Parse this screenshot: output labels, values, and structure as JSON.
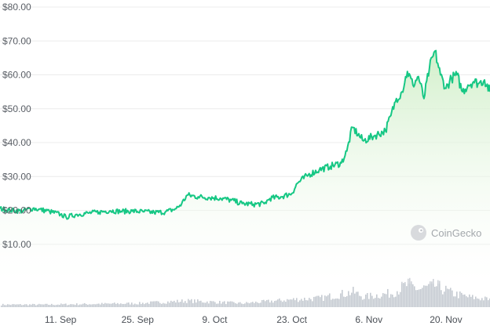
{
  "chart_data": {
    "type": "area",
    "title": "",
    "xlabel": "",
    "ylabel": "",
    "y_tick_labels": [
      "$10.00",
      "$20.00",
      "$30.00",
      "$40.00",
      "$50.00",
      "$60.00",
      "$70.00",
      "$80.00"
    ],
    "y_ticks": [
      10,
      20,
      30,
      40,
      50,
      60,
      70,
      80
    ],
    "ylim": [
      0,
      80
    ],
    "x_tick_labels": [
      "11. Sep",
      "25. Sep",
      "9. Oct",
      "23. Oct",
      "6. Nov",
      "20. Nov"
    ],
    "x_ticks": [
      "2023-09-11",
      "2023-09-25",
      "2023-10-09",
      "2023-10-23",
      "2023-11-06",
      "2023-11-20"
    ],
    "x_range": [
      "2023-08-31",
      "2023-11-28"
    ],
    "grid": "horizontal",
    "series": [
      {
        "values": [
          [
            "2023-08-31",
            20.5
          ],
          [
            "2023-09-02",
            20.0
          ],
          [
            "2023-09-04",
            19.8
          ],
          [
            "2023-09-06",
            20.6
          ],
          [
            "2023-09-07",
            20.3
          ],
          [
            "2023-09-09",
            19.7
          ],
          [
            "2023-09-11",
            18.8
          ],
          [
            "2023-09-12",
            18.0
          ],
          [
            "2023-09-14",
            18.8
          ],
          [
            "2023-09-16",
            19.2
          ],
          [
            "2023-09-18",
            19.5
          ],
          [
            "2023-09-20",
            19.9
          ],
          [
            "2023-09-22",
            19.7
          ],
          [
            "2023-09-24",
            19.8
          ],
          [
            "2023-09-26",
            19.6
          ],
          [
            "2023-09-28",
            19.4
          ],
          [
            "2023-09-30",
            19.5
          ],
          [
            "2023-10-02",
            20.5
          ],
          [
            "2023-10-03",
            22.0
          ],
          [
            "2023-10-04",
            24.5
          ],
          [
            "2023-10-06",
            24.0
          ],
          [
            "2023-10-08",
            23.8
          ],
          [
            "2023-10-10",
            23.6
          ],
          [
            "2023-10-12",
            23.0
          ],
          [
            "2023-10-14",
            22.0
          ],
          [
            "2023-10-16",
            21.8
          ],
          [
            "2023-10-18",
            22.0
          ],
          [
            "2023-10-19",
            23.5
          ],
          [
            "2023-10-21",
            24.0
          ],
          [
            "2023-10-23",
            25.0
          ],
          [
            "2023-10-24",
            28.0
          ],
          [
            "2023-10-26",
            30.5
          ],
          [
            "2023-10-28",
            32.0
          ],
          [
            "2023-10-30",
            33.0
          ],
          [
            "2023-11-01",
            34.0
          ],
          [
            "2023-11-02",
            37.5
          ],
          [
            "2023-11-03",
            44.5
          ],
          [
            "2023-11-05",
            40.5
          ],
          [
            "2023-11-07",
            42.0
          ],
          [
            "2023-11-09",
            43.5
          ],
          [
            "2023-11-10",
            48.0
          ],
          [
            "2023-11-11",
            53.0
          ],
          [
            "2023-11-12",
            55.0
          ],
          [
            "2023-11-13",
            61.0
          ],
          [
            "2023-11-14",
            57.0
          ],
          [
            "2023-11-15",
            59.5
          ],
          [
            "2023-11-16",
            53.0
          ],
          [
            "2023-11-17",
            62.0
          ],
          [
            "2023-11-18",
            67.0
          ],
          [
            "2023-11-19",
            60.0
          ],
          [
            "2023-11-20",
            56.0
          ],
          [
            "2023-11-21",
            59.0
          ],
          [
            "2023-11-22",
            60.0
          ],
          [
            "2023-11-23",
            55.0
          ],
          [
            "2023-11-24",
            57.0
          ],
          [
            "2023-11-25",
            58.0
          ],
          [
            "2023-11-26",
            57.5
          ],
          [
            "2023-11-27",
            58.5
          ],
          [
            "2023-11-28",
            55.0
          ]
        ]
      }
    ],
    "volume": [
      [
        "2023-08-31",
        0.1
      ],
      [
        "2023-09-08",
        0.1
      ],
      [
        "2023-09-25",
        0.15
      ],
      [
        "2023-10-04",
        0.25
      ],
      [
        "2023-10-14",
        0.15
      ],
      [
        "2023-10-23",
        0.3
      ],
      [
        "2023-10-28",
        0.35
      ],
      [
        "2023-11-03",
        0.6
      ],
      [
        "2023-11-05",
        0.4
      ],
      [
        "2023-11-10",
        0.55
      ],
      [
        "2023-11-13",
        0.9
      ],
      [
        "2023-11-15",
        0.7
      ],
      [
        "2023-11-18",
        0.85
      ],
      [
        "2023-11-21",
        0.55
      ],
      [
        "2023-11-24",
        0.4
      ],
      [
        "2023-11-28",
        0.3
      ]
    ],
    "colors": {
      "line": "#16c784",
      "area_top": "#cfeec7",
      "grid": "#ececec",
      "volume": "#c5cad1"
    }
  },
  "watermark": {
    "text": "CoinGecko",
    "icon": "coingecko-logo-icon"
  }
}
